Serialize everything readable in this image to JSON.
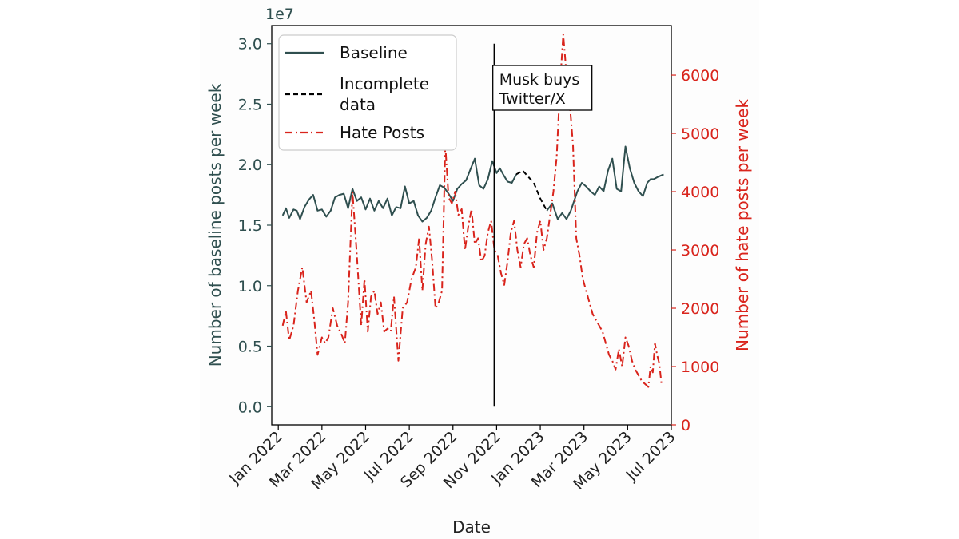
{
  "chart_data": {
    "type": "line",
    "xlabel": "Date",
    "ylabel_left": "Number of baseline posts per week",
    "ylabel_right": "Number of hate posts per week",
    "left_axis_offset_label": "1e7",
    "ylim_left": [
      -0.15,
      3.15
    ],
    "ylim_right": [
      0,
      6850
    ],
    "yticks_left": [
      "0.0",
      "0.5",
      "1.0",
      "1.5",
      "2.0",
      "2.5",
      "3.0"
    ],
    "yticks_left_values": [
      0.0,
      0.5,
      1.0,
      1.5,
      2.0,
      2.5,
      3.0
    ],
    "yticks_right": [
      "0",
      "1000",
      "2000",
      "3000",
      "4000",
      "5000",
      "6000"
    ],
    "yticks_right_values": [
      0,
      1000,
      2000,
      3000,
      4000,
      5000,
      6000
    ],
    "xticks": [
      "Jan 2022",
      "Mar 2022",
      "May 2022",
      "Jul 2022",
      "Sep 2022",
      "Nov 2022",
      "Jan 2023",
      "Mar 2023",
      "May 2023",
      "Jul 2023"
    ],
    "xticks_month_index": [
      0,
      2,
      4,
      6,
      8,
      10,
      12,
      14,
      16,
      18
    ],
    "xlim_month_index": [
      -0.3,
      18.0
    ],
    "legend": {
      "position": "top-left",
      "entries": [
        {
          "label": "Baseline",
          "color": "#2f4f4f",
          "style": "solid"
        },
        {
          "label": "Incomplete data",
          "label_lines": [
            "Incomplete",
            "data"
          ],
          "color": "#000000",
          "style": "dashed"
        },
        {
          "label": "Hate Posts",
          "color": "#d9241c",
          "style": "dashdot"
        }
      ]
    },
    "annotation": {
      "lines": [
        "Musk buys",
        "Twitter/X"
      ],
      "x_month_index": 9.9
    },
    "series": [
      {
        "name": "Baseline",
        "axis": "left",
        "color": "#2f4f4f",
        "style": "solid",
        "segments": [
          {
            "x": [
              0.2,
              0.35,
              0.5,
              0.7,
              0.85,
              1.0,
              1.2,
              1.4,
              1.6,
              1.8,
              2.0,
              2.2,
              2.4,
              2.6,
              2.8,
              3.0,
              3.2,
              3.4,
              3.6,
              3.8,
              4.0,
              4.2,
              4.4,
              4.6,
              4.8,
              5.0,
              5.2,
              5.4,
              5.6,
              5.8,
              6.0,
              6.2,
              6.4,
              6.6,
              6.8,
              7.0,
              7.2,
              7.4,
              7.6,
              7.8,
              8.0,
              8.2,
              8.4,
              8.6,
              8.8,
              9.0,
              9.2,
              9.4,
              9.6,
              9.8,
              10.0,
              10.15,
              10.3,
              10.5,
              10.7,
              10.9
            ],
            "y": [
              1.58,
              1.64,
              1.56,
              1.63,
              1.62,
              1.55,
              1.65,
              1.71,
              1.75,
              1.62,
              1.63,
              1.57,
              1.62,
              1.73,
              1.75,
              1.76,
              1.64,
              1.8,
              1.7,
              1.73,
              1.63,
              1.72,
              1.62,
              1.7,
              1.64,
              1.72,
              1.58,
              1.65,
              1.64,
              1.82,
              1.68,
              1.7,
              1.58,
              1.53,
              1.56,
              1.62,
              1.73,
              1.83,
              1.81,
              1.76,
              1.7,
              1.8,
              1.84,
              1.87,
              1.96,
              2.05,
              1.83,
              1.8,
              1.88,
              2.03,
              1.93,
              1.97,
              1.92,
              1.86,
              1.85,
              1.92
            ]
          },
          {
            "x": [
              12.3,
              12.55,
              12.8,
              13.0,
              13.2,
              13.4,
              13.55,
              13.7,
              13.9,
              14.1,
              14.3,
              14.5,
              14.7,
              14.9,
              15.1,
              15.3,
              15.5,
              15.7,
              15.9,
              16.1,
              16.3,
              16.5,
              16.7,
              16.9,
              17.05,
              17.2,
              17.4,
              17.65
            ],
            "y": [
              1.62,
              1.68,
              1.55,
              1.6,
              1.55,
              1.62,
              1.7,
              1.78,
              1.85,
              1.82,
              1.78,
              1.75,
              1.82,
              1.78,
              1.95,
              2.05,
              1.8,
              1.78,
              2.15,
              1.97,
              1.85,
              1.78,
              1.74,
              1.85,
              1.88,
              1.88,
              1.9,
              1.92
            ]
          }
        ]
      },
      {
        "name": "Incomplete data",
        "axis": "left",
        "color": "#000000",
        "style": "dashed",
        "segments": [
          {
            "x": [
              10.9,
              11.2,
              11.7,
              12.0,
              12.3
            ],
            "y": [
              1.92,
              1.95,
              1.85,
              1.72,
              1.62
            ]
          }
        ]
      },
      {
        "name": "Hate Posts",
        "axis": "right",
        "color": "#d9241c",
        "style": "dashdot",
        "segments": [
          {
            "x": [
              0.2,
              0.35,
              0.5,
              0.7,
              0.9,
              1.1,
              1.3,
              1.5,
              1.65,
              1.8,
              2.0,
              2.15,
              2.3,
              2.5,
              2.7,
              2.9,
              3.05,
              3.2,
              3.4,
              3.6,
              3.8,
              3.95,
              4.1,
              4.25,
              4.4,
              4.55,
              4.7,
              4.85,
              5.0,
              5.15,
              5.3,
              5.5,
              5.7,
              5.9,
              6.1,
              6.3,
              6.45,
              6.6,
              6.75,
              6.9,
              7.05,
              7.2,
              7.35,
              7.5,
              7.65,
              7.8,
              7.95,
              8.1,
              8.25,
              8.4,
              8.55,
              8.7,
              8.85,
              9.0,
              9.15,
              9.3,
              9.45,
              9.6,
              9.75,
              9.9,
              10.05,
              10.2,
              10.35,
              10.5,
              10.65,
              10.8,
              10.95,
              11.1,
              11.25,
              11.4,
              11.55,
              11.7,
              11.85,
              12.0,
              12.15,
              12.3,
              12.45,
              12.6,
              12.75,
              12.9,
              13.05,
              13.2,
              13.35,
              13.5,
              13.65,
              13.8,
              13.95,
              14.1,
              14.25,
              14.4,
              14.55,
              14.7,
              14.85,
              15.0,
              15.15,
              15.3,
              15.45,
              15.6,
              15.75,
              15.9,
              16.05,
              16.2,
              16.35,
              16.5,
              16.65,
              16.8,
              16.95,
              17.05,
              17.15,
              17.25,
              17.35,
              17.45,
              17.55
            ],
            "y": [
              1700,
              1950,
              1450,
              1700,
              2300,
              2700,
              2100,
              2300,
              1800,
              1200,
              1500,
              1400,
              1500,
              2000,
              1700,
              1550,
              1400,
              2100,
              4000,
              2900,
              1700,
              2500,
              1600,
              2200,
              2300,
              1900,
              2100,
              1600,
              1650,
              1600,
              2200,
              1100,
              2000,
              2100,
              2500,
              2700,
              3200,
              2300,
              3100,
              3400,
              2800,
              2000,
              2100,
              2300,
              4800,
              3900,
              3800,
              4000,
              3600,
              3700,
              3000,
              3400,
              3700,
              3100,
              3200,
              2800,
              2900,
              3300,
              3500,
              3000,
              2900,
              2600,
              2400,
              2800,
              3300,
              3500,
              3000,
              2700,
              3100,
              3200,
              2900,
              2700,
              3300,
              3500,
              3000,
              3200,
              3600,
              4000,
              4600,
              5800,
              6700,
              6000,
              5500,
              4800,
              3200,
              2900,
              2500,
              2300,
              2100,
              1900,
              1800,
              1700,
              1600,
              1400,
              1200,
              1100,
              950,
              1300,
              1000,
              1500,
              1350,
              1100,
              950,
              850,
              750,
              700,
              650,
              1000,
              900,
              1400,
              1200,
              1050,
              700
            ]
          }
        ]
      }
    ]
  }
}
